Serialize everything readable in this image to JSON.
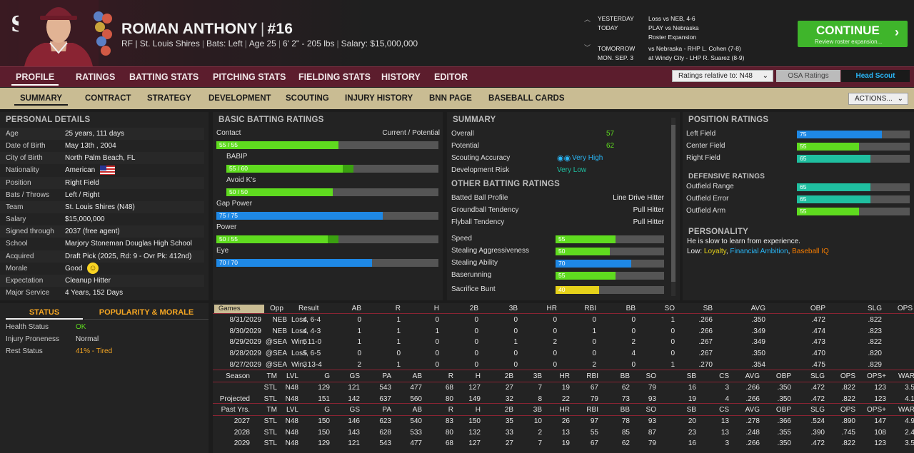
{
  "player": {
    "name": "ROMAN ANTHONY",
    "number": "#16",
    "position_team": "RF | St. Louis Shires",
    "bats": "Bats: Left",
    "age": "Age 25",
    "height_weight": "6' 2\" - 205 lbs",
    "salary": "Salary: $15,000,000"
  },
  "schedule": [
    {
      "k": "YESTERDAY",
      "v": "Loss vs NEB, 4-6"
    },
    {
      "k": "TODAY",
      "v": "PLAY vs Nebraska"
    },
    {
      "k": "",
      "v": "Roster Expansion"
    },
    {
      "k": "TOMORROW",
      "v": "vs Nebraska - RHP L. Cohen (7-8)"
    },
    {
      "k": "MON. SEP. 3",
      "v": "at Windy City - LHP R. Suarez (8-9)"
    }
  ],
  "continue": {
    "label": "CONTINUE",
    "sub": "Review roster expansion..."
  },
  "nav": [
    "PROFILE",
    "RATINGS",
    "BATTING STATS",
    "PITCHING STATS",
    "FIELDING STATS",
    "HISTORY",
    "EDITOR"
  ],
  "ratings_relative": "Ratings relative to: N48",
  "osa": "OSA Ratings",
  "head_scout": "Head Scout",
  "subnav": [
    "SUMMARY",
    "CONTRACT",
    "STRATEGY",
    "DEVELOPMENT",
    "SCOUTING",
    "INJURY HISTORY",
    "BNN PAGE",
    "BASEBALL CARDS"
  ],
  "actions": "ACTIONS...",
  "personal": {
    "title": "PERSONAL DETAILS",
    "rows": [
      [
        "Age",
        "25 years, 111 days"
      ],
      [
        "Date of Birth",
        "May 13th , 2004"
      ],
      [
        "City of Birth",
        "North Palm Beach, FL"
      ],
      [
        "Nationality",
        "American"
      ],
      [
        "Position",
        "Right Field"
      ],
      [
        "Bats / Throws",
        "Left / Right"
      ],
      [
        "Team",
        "St. Louis Shires (N48)"
      ],
      [
        "Salary",
        "$15,000,000"
      ],
      [
        "Signed through",
        "2037 (free agent)"
      ],
      [
        "School",
        "Marjory Stoneman Douglas High School"
      ],
      [
        "Acquired",
        "Draft Pick (2025, Rd: 9 - Ovr Pk: 412nd)"
      ],
      [
        "Morale",
        "Good"
      ],
      [
        "Expectation",
        "Cleanup Hitter"
      ],
      [
        "Major Service",
        "4 Years, 152 Days"
      ]
    ]
  },
  "status": {
    "tab1": "STATUS",
    "tab2": "POPULARITY & MORALE",
    "rows": [
      [
        "Health Status",
        "OK"
      ],
      [
        "Injury Proneness",
        "Normal"
      ],
      [
        "Rest Status",
        "41% - Tired"
      ]
    ]
  },
  "batting": {
    "title": "BASIC BATTING RATINGS",
    "cp": "Current / Potential",
    "items": [
      {
        "name": "Contact",
        "label": "55 / 55",
        "cur": 55,
        "pot": 55,
        "c": "g",
        "ind": false
      },
      {
        "name": "BABIP",
        "label": "55 / 60",
        "cur": 55,
        "pot": 60,
        "c": "g",
        "ind": true
      },
      {
        "name": "Avoid K's",
        "label": "50 / 50",
        "cur": 50,
        "pot": 50,
        "c": "g",
        "ind": true
      },
      {
        "name": "Gap Power",
        "label": "75 / 75",
        "cur": 75,
        "pot": 75,
        "c": "b",
        "ind": false
      },
      {
        "name": "Power",
        "label": "50 / 55",
        "cur": 50,
        "pot": 55,
        "c": "g",
        "ind": false
      },
      {
        "name": "Eye",
        "label": "70 / 70",
        "cur": 70,
        "pot": 70,
        "c": "b",
        "ind": false
      }
    ]
  },
  "summary": {
    "title": "SUMMARY",
    "overall_k": "Overall",
    "overall": "57",
    "potential_k": "Potential",
    "potential": "62",
    "scout_k": "Scouting Accuracy",
    "scout": "Very High",
    "dev_k": "Development Risk",
    "dev": "Very Low",
    "other_title": "OTHER BATTING RATINGS",
    "profile": [
      [
        "Batted Ball Profile",
        "Line Drive Hitter"
      ],
      [
        "Groundball Tendency",
        "Pull Hitter"
      ],
      [
        "Flyball Tendency",
        "Pull Hitter"
      ]
    ],
    "speed": [
      {
        "name": "Speed",
        "v": 55,
        "c": "g"
      },
      {
        "name": "Stealing Aggressiveness",
        "v": 50,
        "c": "g"
      },
      {
        "name": "Stealing Ability",
        "v": 70,
        "c": "b"
      },
      {
        "name": "Baserunning",
        "v": 55,
        "c": "g"
      },
      {
        "name": "Sacrifice Bunt",
        "v": 40,
        "c": "y"
      }
    ]
  },
  "position": {
    "title": "POSITION RATINGS",
    "items": [
      {
        "name": "Left Field",
        "v": 75,
        "c": "b"
      },
      {
        "name": "Center Field",
        "v": 55,
        "c": "g"
      },
      {
        "name": "Right Field",
        "v": 65,
        "c": "t"
      }
    ],
    "def_title": "DEFENSIVE RATINGS",
    "def": [
      {
        "name": "Outfield Range",
        "v": 65,
        "c": "t"
      },
      {
        "name": "Outfield Error",
        "v": 65,
        "c": "t"
      },
      {
        "name": "Outfield Arm",
        "v": 55,
        "c": "g"
      }
    ],
    "pers_title": "PERSONALITY",
    "pers_line": "He is slow to learn from experience.",
    "low_label": "Low:",
    "low": [
      {
        "t": "Loyalty",
        "c": "#e6d21a"
      },
      {
        "t": "Financial Ambition",
        "c": "#29b6f6"
      },
      {
        "t": "Baseball IQ",
        "c": "#f57c00"
      }
    ]
  },
  "games": {
    "filter": "Games",
    "cols": [
      "Opp",
      "Result",
      "AB",
      "R",
      "H",
      "2B",
      "3B",
      "HR",
      "RBI",
      "BB",
      "SO",
      "SB",
      "AVG",
      "OBP",
      "SLG",
      "OPS"
    ],
    "rows": [
      [
        "8/31/2029",
        "NEB",
        "Loss, 6-4",
        "4",
        "0",
        "1",
        "0",
        "0",
        "0",
        "0",
        "0",
        "0",
        "1",
        ".266",
        ".350",
        ".472",
        ".822"
      ],
      [
        "8/30/2029",
        "NEB",
        "Loss, 4-3",
        "4",
        "1",
        "1",
        "1",
        "0",
        "0",
        "0",
        "1",
        "0",
        "0",
        ".266",
        ".349",
        ".474",
        ".823"
      ],
      [
        "8/29/2029",
        "@SEA",
        "Win, 11-0",
        "5",
        "1",
        "1",
        "0",
        "0",
        "1",
        "2",
        "0",
        "2",
        "0",
        ".267",
        ".349",
        ".473",
        ".822"
      ],
      [
        "8/28/2029",
        "@SEA",
        "Loss, 6-5",
        "5",
        "0",
        "0",
        "0",
        "0",
        "0",
        "0",
        "0",
        "4",
        "0",
        ".267",
        ".350",
        ".470",
        ".820"
      ],
      [
        "8/27/2029",
        "@SEA",
        "Win, 13-4",
        "3",
        "2",
        "1",
        "0",
        "0",
        "0",
        "0",
        "2",
        "0",
        "1",
        ".270",
        ".354",
        ".475",
        ".829"
      ]
    ]
  },
  "season": {
    "cols": [
      "Season",
      "TM",
      "LVL",
      "G",
      "GS",
      "PA",
      "AB",
      "R",
      "H",
      "2B",
      "3B",
      "HR",
      "RBI",
      "BB",
      "SO",
      "SB",
      "CS",
      "AVG",
      "OBP",
      "SLG",
      "OPS",
      "OPS+",
      "WAR"
    ],
    "rows": [
      [
        "",
        "STL",
        "N48",
        "129",
        "121",
        "543",
        "477",
        "68",
        "127",
        "27",
        "7",
        "19",
        "67",
        "62",
        "79",
        "16",
        "3",
        ".266",
        ".350",
        ".472",
        ".822",
        "123",
        "3.5"
      ],
      [
        "Projected",
        "STL",
        "N48",
        "151",
        "142",
        "637",
        "560",
        "80",
        "149",
        "32",
        "8",
        "22",
        "79",
        "73",
        "93",
        "19",
        "4",
        ".266",
        ".350",
        ".472",
        ".822",
        "123",
        "4.1"
      ]
    ]
  },
  "past": {
    "cols": [
      "Past Yrs.",
      "TM",
      "LVL",
      "G",
      "GS",
      "PA",
      "AB",
      "R",
      "H",
      "2B",
      "3B",
      "HR",
      "RBI",
      "BB",
      "SO",
      "SB",
      "CS",
      "AVG",
      "OBP",
      "SLG",
      "OPS",
      "OPS+",
      "WAR"
    ],
    "rows": [
      [
        "2027",
        "STL",
        "N48",
        "150",
        "146",
        "623",
        "540",
        "83",
        "150",
        "35",
        "10",
        "26",
        "97",
        "78",
        "93",
        "20",
        "13",
        ".278",
        ".366",
        ".524",
        ".890",
        "147",
        "4.9"
      ],
      [
        "2028",
        "STL",
        "N48",
        "150",
        "143",
        "628",
        "533",
        "80",
        "132",
        "33",
        "2",
        "13",
        "55",
        "85",
        "87",
        "23",
        "13",
        ".248",
        ".355",
        ".390",
        ".745",
        "108",
        "2.4"
      ],
      [
        "2029",
        "STL",
        "N48",
        "129",
        "121",
        "543",
        "477",
        "68",
        "127",
        "27",
        "7",
        "19",
        "67",
        "62",
        "79",
        "16",
        "3",
        ".266",
        ".350",
        ".472",
        ".822",
        "123",
        "3.5"
      ]
    ]
  }
}
